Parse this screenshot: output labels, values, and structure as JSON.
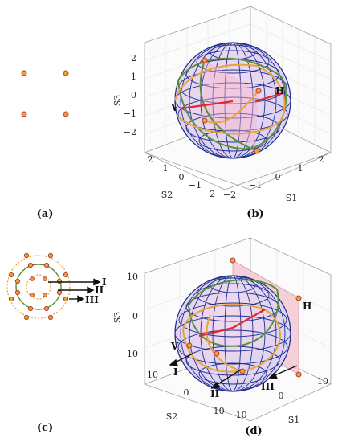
{
  "panels": {
    "a": {
      "caption": "(a)"
    },
    "b": {
      "caption": "(b)",
      "zlabel": "S3",
      "ylabel": "S2",
      "xlabel": "S1",
      "zticks": [
        "2",
        "1",
        "0",
        "−1",
        "−2"
      ],
      "yticks": [
        "2",
        "1",
        "0",
        "−1",
        "−2"
      ],
      "xticks": [
        "−2",
        "−1",
        "0",
        "1",
        "2"
      ],
      "annotations": {
        "left": "V",
        "right": "H"
      }
    },
    "c": {
      "caption": "(c)",
      "labels": [
        "I",
        "II",
        "III"
      ]
    },
    "d": {
      "caption": "(d)",
      "zlabel": "S3",
      "ylabel": "S2",
      "xlabel": "S1",
      "zticks": [
        "10",
        "0",
        "−10"
      ],
      "yticks": [
        "10",
        "0",
        "−10"
      ],
      "xticks": [
        "−10",
        "0",
        "10"
      ],
      "annotations": {
        "left": "V",
        "right": "H",
        "arrows": [
          "I",
          "II",
          "III"
        ]
      }
    }
  },
  "colors": {
    "orange": "#e8a33a",
    "marker_edge": "#c0392b",
    "green": "#5a8f3a",
    "red": "#e0282e",
    "blue": "#1f2f8f",
    "pink": "#f6c9d4"
  }
}
